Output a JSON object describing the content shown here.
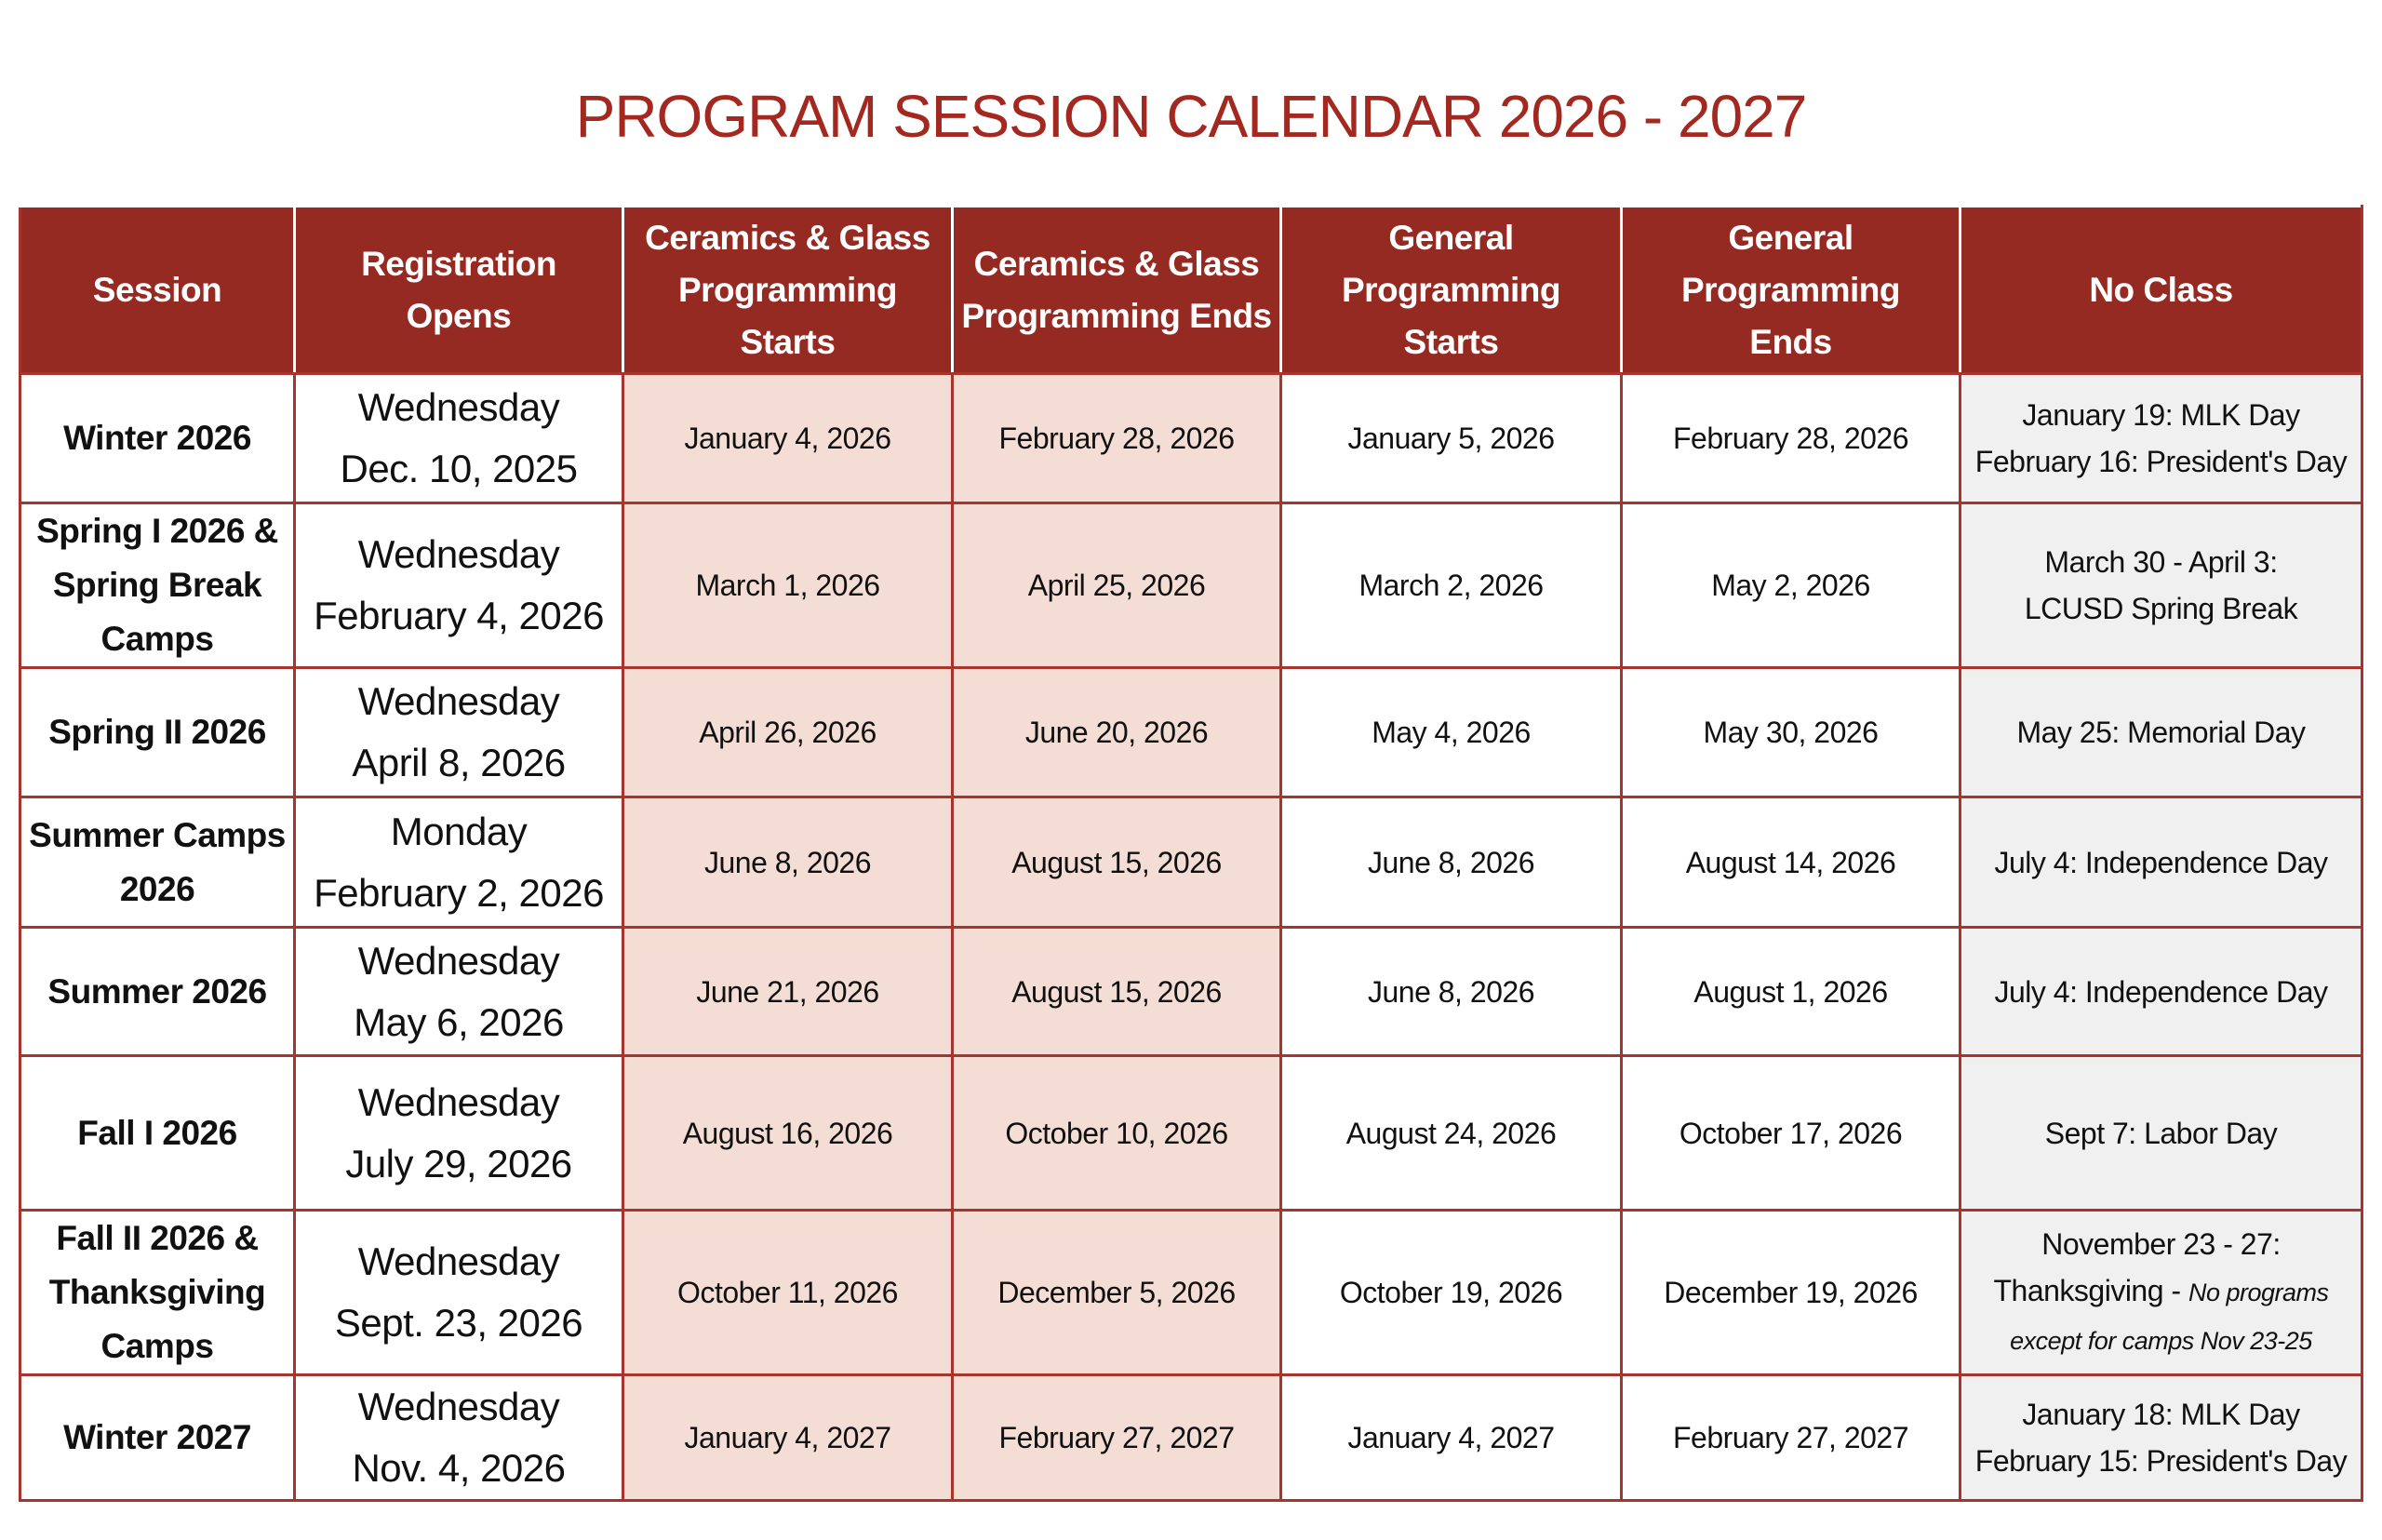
{
  "title": "PROGRAM SESSION CALENDAR 2026 - 2027",
  "colors": {
    "header_bg": "#952a22",
    "title": "#a3281f",
    "ceramics_bg": "#f4ddd4",
    "no_class_bg": "#f0f0f0",
    "border": "#a8352d"
  },
  "headers": [
    "Session",
    "Registration Opens",
    "Ceramics & Glass Programming Starts",
    "Ceramics & Glass Programming Ends",
    "General Programming Starts",
    "General Programming Ends",
    "No Class"
  ],
  "rows": [
    {
      "session": "Winter 2026",
      "reg_day": "Wednesday",
      "reg_date": "Dec. 10, 2025",
      "cg_start": "January 4, 2026",
      "cg_end": "February 28, 2026",
      "gen_start": "January 5, 2026",
      "gen_end": "February 28, 2026",
      "no_class": [
        "January 19: MLK Day",
        "February 16: President's Day"
      ]
    },
    {
      "session": "Spring I 2026 & Spring Break Camps",
      "reg_day": "Wednesday",
      "reg_date": "February 4, 2026",
      "cg_start": "March 1, 2026",
      "cg_end": "April 25, 2026",
      "gen_start": "March 2, 2026",
      "gen_end": "May 2, 2026",
      "no_class": [
        "March 30 - April 3:",
        "LCUSD Spring Break"
      ]
    },
    {
      "session": "Spring II 2026",
      "reg_day": "Wednesday",
      "reg_date": "April 8, 2026",
      "cg_start": "April 26, 2026",
      "cg_end": "June 20, 2026",
      "gen_start": "May 4, 2026",
      "gen_end": "May 30, 2026",
      "no_class": [
        "May 25: Memorial Day"
      ]
    },
    {
      "session": "Summer Camps 2026",
      "reg_day": "Monday",
      "reg_date": "February 2, 2026",
      "cg_start": "June 8, 2026",
      "cg_end": "August 15, 2026",
      "gen_start": "June 8, 2026",
      "gen_end": "August 14, 2026",
      "no_class": [
        "July 4: Independence Day"
      ]
    },
    {
      "session": "Summer 2026",
      "reg_day": "Wednesday",
      "reg_date": "May 6, 2026",
      "cg_start": "June 21, 2026",
      "cg_end": "August 15, 2026",
      "gen_start": "June 8, 2026",
      "gen_end": "August 1, 2026",
      "no_class": [
        "July 4: Independence Day"
      ]
    },
    {
      "session": "Fall I 2026",
      "reg_day": "Wednesday",
      "reg_date": "July 29, 2026",
      "cg_start": "August 16, 2026",
      "cg_end": "October 10, 2026",
      "gen_start": "August 24, 2026",
      "gen_end": "October 17, 2026",
      "no_class": [
        "Sept 7: Labor Day"
      ]
    },
    {
      "session": "Fall II 2026 & Thanksgiving Camps",
      "reg_day": "Wednesday",
      "reg_date": "Sept. 23, 2026",
      "cg_start": "October 11, 2026",
      "cg_end": "December 5, 2026",
      "gen_start": "October 19, 2026",
      "gen_end": "December 19, 2026",
      "no_class": [
        "November 23 - 27:",
        "Thanksgiving - "
      ],
      "no_class_note": "No programs except for camps Nov 23-25"
    },
    {
      "session": "Winter 2027",
      "reg_day": "Wednesday",
      "reg_date": "Nov. 4, 2026",
      "cg_start": "January 4, 2027",
      "cg_end": "February 27, 2027",
      "gen_start": "January 4, 2027",
      "gen_end": "February 27, 2027",
      "no_class": [
        "January 18: MLK  Day",
        "February 15: President's Day"
      ]
    }
  ]
}
